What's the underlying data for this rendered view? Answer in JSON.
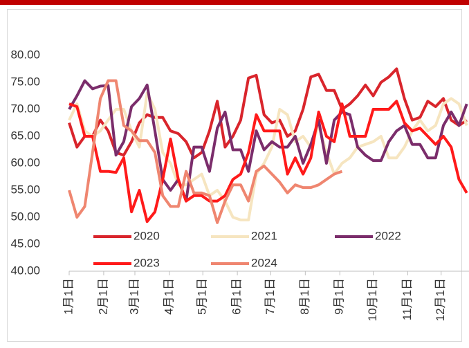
{
  "chart_data": {
    "type": "line",
    "x": [
      0,
      7,
      14,
      21,
      28,
      35,
      42,
      49,
      56,
      63,
      70,
      77,
      84,
      91,
      98,
      105,
      112,
      119,
      126,
      133,
      140,
      147,
      154,
      161,
      168,
      175,
      182,
      189,
      196,
      203,
      210,
      217,
      224,
      231,
      238,
      245,
      252,
      259,
      266,
      273,
      280,
      287,
      294,
      301,
      308,
      315,
      322,
      329,
      336,
      343,
      350,
      357
    ],
    "xlim": [
      0,
      359
    ],
    "xticks": [
      {
        "value": 0,
        "label": "1月1日"
      },
      {
        "value": 31,
        "label": "2月1日"
      },
      {
        "value": 59,
        "label": "3月1日"
      },
      {
        "value": 90,
        "label": "4月1日"
      },
      {
        "value": 120,
        "label": "5月1日"
      },
      {
        "value": 151,
        "label": "6月1日"
      },
      {
        "value": 181,
        "label": "7月1日"
      },
      {
        "value": 212,
        "label": "8月1日"
      },
      {
        "value": 243,
        "label": "9月1日"
      },
      {
        "value": 273,
        "label": "10月1日"
      },
      {
        "value": 304,
        "label": "11月1日"
      },
      {
        "value": 334,
        "label": "12月1日"
      }
    ],
    "ylim": [
      40,
      80
    ],
    "yticks": [
      {
        "value": 40,
        "label": "40.00"
      },
      {
        "value": 45,
        "label": "45.00"
      },
      {
        "value": 50,
        "label": "50.00"
      },
      {
        "value": 55,
        "label": "55.00"
      },
      {
        "value": 60,
        "label": "60.00"
      },
      {
        "value": 65,
        "label": "65.00"
      },
      {
        "value": 70,
        "label": "70.00"
      },
      {
        "value": 75,
        "label": "75.00"
      },
      {
        "value": 80,
        "label": "80.00"
      }
    ],
    "series": [
      {
        "name": "2020",
        "color": "#d9252c",
        "values": [
          67.5,
          63,
          65,
          65,
          68,
          66,
          62,
          61.5,
          64,
          67.5,
          69,
          68.5,
          68.5,
          66,
          65.5,
          64,
          61,
          62,
          66,
          71.5,
          63,
          65,
          68,
          75.8,
          76.3,
          69,
          67.5,
          68,
          65,
          66,
          70,
          76,
          76.5,
          73.5,
          73.5,
          70,
          71,
          72.5,
          74.5,
          72.5,
          75,
          76,
          77.5,
          72,
          68,
          68.5,
          71.5,
          70.5,
          72,
          68,
          67,
          68
        ]
      },
      {
        "name": "2021",
        "color": "#f6e5c0",
        "values": [
          68,
          71,
          66,
          65,
          66,
          68,
          70,
          70,
          66,
          63,
          73,
          70,
          62,
          60,
          56,
          56,
          57,
          58,
          54,
          55,
          53,
          50,
          49.5,
          49.5,
          58,
          60,
          63,
          70,
          69,
          64,
          65,
          63,
          67,
          62,
          58,
          60,
          61,
          63,
          63.5,
          64,
          65,
          61,
          61,
          63,
          66,
          68,
          66,
          67,
          71,
          72,
          71,
          67
        ]
      },
      {
        "name": "2022",
        "color": "#7b2d6b",
        "values": [
          70,
          72.5,
          75.3,
          73.8,
          74.3,
          74.4,
          61.5,
          64,
          70.5,
          72,
          74.5,
          66,
          57,
          55,
          57,
          53,
          63,
          63,
          58.5,
          66.5,
          69.5,
          62.5,
          62.5,
          58.5,
          66,
          62.5,
          64,
          63,
          63,
          65,
          60,
          63.5,
          68,
          60,
          68,
          69.5,
          69,
          63,
          61.5,
          60.5,
          60.5,
          64,
          66,
          67,
          63.5,
          63.5,
          61,
          61,
          67,
          69.5,
          67,
          71
        ]
      },
      {
        "name": "2023",
        "color": "#ff1a1a",
        "values": [
          71,
          70.5,
          65,
          65,
          58.5,
          58.5,
          58.3,
          61,
          51,
          55,
          49.2,
          51,
          57,
          64.5,
          57,
          53,
          54,
          54,
          53,
          53,
          54,
          57,
          58,
          62,
          69,
          66,
          66,
          66,
          58,
          61,
          58,
          61,
          69.5,
          65,
          64,
          71,
          65,
          65,
          65,
          70,
          70,
          70,
          71.5,
          67.5,
          66,
          66.5,
          65,
          63.5,
          65,
          63,
          57,
          54.5
        ]
      },
      {
        "name": "2024",
        "color": "#ef8670",
        "values": [
          55,
          50,
          52,
          62,
          72,
          75.3,
          75.3,
          67,
          66,
          64.2,
          64.2,
          62,
          54,
          52,
          52,
          58.5,
          54.5,
          54.5,
          54,
          49,
          53,
          56,
          56,
          53,
          58.5,
          59.5,
          58,
          56.5,
          54.5,
          56,
          55.5,
          55.5,
          56,
          57,
          58,
          58.5,
          null,
          null,
          null,
          null,
          null,
          null,
          null,
          null,
          null,
          null,
          null,
          null,
          null,
          null,
          null,
          null
        ]
      }
    ]
  }
}
